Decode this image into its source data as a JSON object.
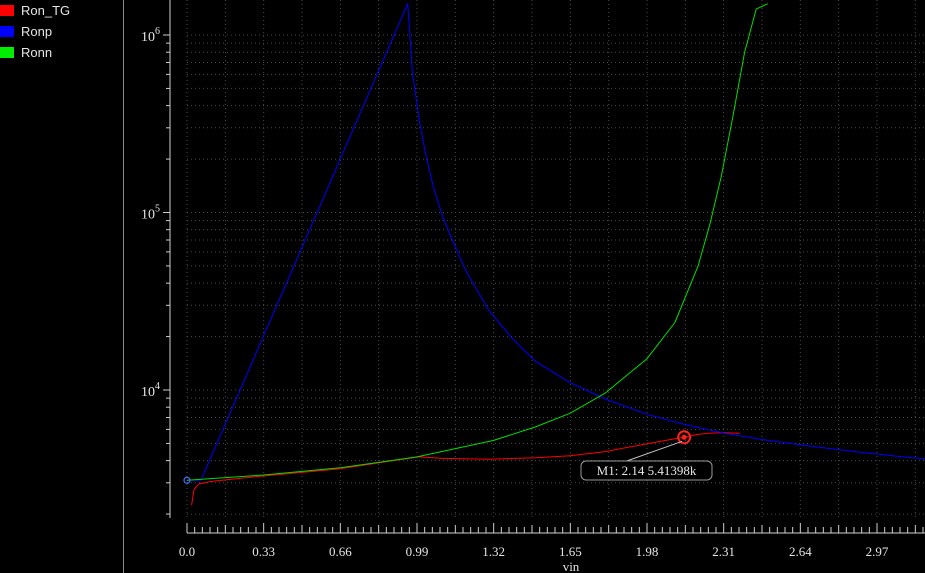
{
  "legend": {
    "items": [
      {
        "label": "Ron_TG",
        "color": "#ff0000"
      },
      {
        "label": "Ronp",
        "color": "#0000ff"
      },
      {
        "label": "Ronn",
        "color": "#00ee00"
      }
    ]
  },
  "marker": {
    "label": "M1: 2.14 5.41398k",
    "x": 2.14,
    "y": 5413.98,
    "color": "#ff2020"
  },
  "chart_data": {
    "type": "line",
    "xlabel": "vin",
    "ylabel": "",
    "title": "",
    "xlim": [
      0.0,
      3.3
    ],
    "ylim": [
      2000,
      1500000
    ],
    "yscale": "log",
    "xticks": [
      0.0,
      0.33,
      0.66,
      0.99,
      1.32,
      1.65,
      1.98,
      2.31,
      2.64,
      2.97
    ],
    "xtick_labels": [
      "0.0",
      "0.33",
      "0.66",
      "0.99",
      "1.32",
      "1.65",
      "1.98",
      "2.31",
      "2.64",
      "2.97"
    ],
    "yticks": [
      10000,
      100000,
      1000000
    ],
    "ytick_labels": [
      {
        "base": "10",
        "exp": "4"
      },
      {
        "base": "10",
        "exp": "5"
      },
      {
        "base": "10",
        "exp": "6"
      }
    ],
    "grid": true,
    "series": [
      {
        "name": "Ron_TG",
        "color": "#ff0000",
        "x": [
          0.02,
          0.03,
          0.05,
          0.1,
          0.3,
          0.66,
          0.9,
          1.0,
          1.1,
          1.3,
          1.5,
          1.65,
          1.8,
          1.98,
          2.1,
          2.14,
          2.2,
          2.25,
          2.31,
          2.38
        ],
        "y": [
          2250,
          2750,
          2950,
          3050,
          3250,
          3600,
          4020,
          4200,
          4120,
          4070,
          4150,
          4260,
          4500,
          4980,
          5320,
          5414,
          5620,
          5720,
          5750,
          5700
        ]
      },
      {
        "name": "Ronp",
        "color": "#0000ff",
        "x": [
          0.0,
          0.03,
          0.06,
          0.95,
          0.97,
          1.0,
          1.03,
          1.06,
          1.1,
          1.15,
          1.2,
          1.3,
          1.4,
          1.5,
          1.65,
          1.8,
          1.98,
          2.14,
          2.31,
          2.5,
          2.7,
          2.9,
          3.1,
          3.3
        ],
        "y": [
          3100,
          3100,
          3100,
          1500000,
          620000,
          330000,
          205000,
          140000,
          95000,
          66000,
          47000,
          28000,
          19500,
          14500,
          11000,
          8900,
          7300,
          6400,
          5720,
          5200,
          4800,
          4450,
          4180,
          3960
        ]
      },
      {
        "name": "Ronn",
        "color": "#00dd00",
        "x": [
          0.0,
          0.33,
          0.66,
          0.99,
          1.32,
          1.5,
          1.65,
          1.8,
          1.98,
          2.1,
          2.2,
          2.25,
          2.3,
          2.35,
          2.4,
          2.45,
          2.5
        ],
        "y": [
          3100,
          3320,
          3650,
          4200,
          5200,
          6200,
          7400,
          9600,
          15000,
          24000,
          50000,
          85000,
          160000,
          350000,
          800000,
          1400000,
          1500000
        ]
      }
    ]
  }
}
